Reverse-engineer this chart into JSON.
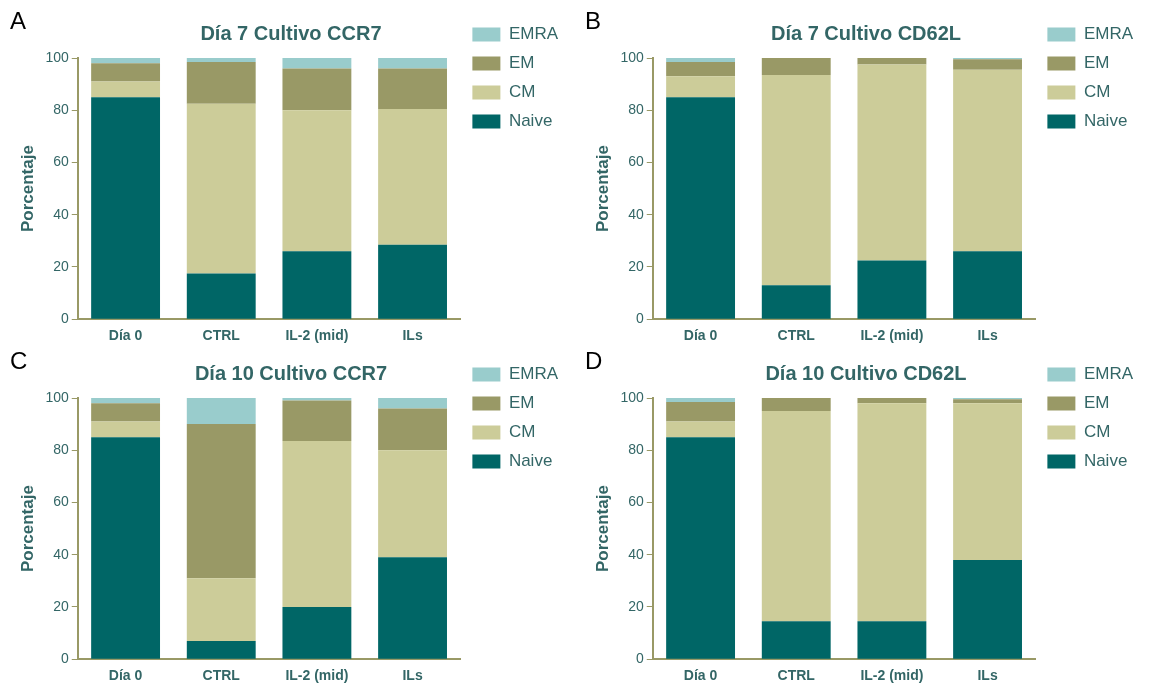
{
  "chart_data": [
    {
      "type": "bar",
      "title": "Día 7 Cultivo CCR7",
      "annotations": [
        "A"
      ],
      "ylabel": "Porcentaje",
      "categories": [
        "Día 0",
        "CTRL",
        "IL-2 (mid)",
        "ILs"
      ],
      "stacked": true,
      "ylim": [
        0,
        100
      ],
      "yticks": [
        0,
        20,
        40,
        60,
        80,
        100
      ],
      "grid": false,
      "legend": "right",
      "series": [
        {
          "name": "Naive",
          "color": "#006666",
          "values": [
            85,
            17.5,
            26,
            28.5
          ]
        },
        {
          "name": "CM",
          "color": "#cccc99",
          "values": [
            6,
            65,
            54,
            52
          ]
        },
        {
          "name": "EM",
          "color": "#999966",
          "values": [
            7,
            16,
            16,
            15.5
          ]
        },
        {
          "name": "EMRA",
          "color": "#99cccc",
          "values": [
            2,
            1.5,
            4,
            4
          ]
        }
      ]
    },
    {
      "type": "bar",
      "title": "Día 7 Cultivo CD62L",
      "annotations": [
        "B"
      ],
      "ylabel": "Porcentaje",
      "categories": [
        "Día 0",
        "CTRL",
        "IL-2 (mid)",
        "ILs"
      ],
      "stacked": true,
      "ylim": [
        0,
        100
      ],
      "yticks": [
        0,
        20,
        40,
        60,
        80,
        100
      ],
      "grid": false,
      "legend": "right",
      "series": [
        {
          "name": "Naive",
          "color": "#006666",
          "values": [
            85,
            13,
            22.5,
            26
          ]
        },
        {
          "name": "CM",
          "color": "#cccc99",
          "values": [
            8,
            80.5,
            75,
            69.5
          ]
        },
        {
          "name": "EM",
          "color": "#999966",
          "values": [
            5.5,
            6.5,
            2.5,
            4
          ]
        },
        {
          "name": "EMRA",
          "color": "#99cccc",
          "values": [
            1.5,
            0,
            0,
            0.5
          ]
        }
      ]
    },
    {
      "type": "bar",
      "title": "Día 10 Cultivo CCR7",
      "annotations": [
        "C"
      ],
      "ylabel": "Porcentaje",
      "categories": [
        "Día 0",
        "CTRL",
        "IL-2 (mid)",
        "ILs"
      ],
      "stacked": true,
      "ylim": [
        0,
        100
      ],
      "yticks": [
        0,
        20,
        40,
        60,
        80,
        100
      ],
      "grid": false,
      "legend": "right",
      "series": [
        {
          "name": "Naive",
          "color": "#006666",
          "values": [
            85,
            7,
            20,
            39
          ]
        },
        {
          "name": "CM",
          "color": "#cccc99",
          "values": [
            6,
            24,
            63.5,
            41
          ]
        },
        {
          "name": "EM",
          "color": "#999966",
          "values": [
            7,
            59,
            15.5,
            16
          ]
        },
        {
          "name": "EMRA",
          "color": "#99cccc",
          "values": [
            2,
            10,
            1,
            4
          ]
        }
      ]
    },
    {
      "type": "bar",
      "title": "Día 10 Cultivo CD62L",
      "annotations": [
        "D"
      ],
      "ylabel": "Porcentaje",
      "categories": [
        "Día 0",
        "CTRL",
        "IL-2 (mid)",
        "ILs"
      ],
      "stacked": true,
      "ylim": [
        0,
        100
      ],
      "yticks": [
        0,
        20,
        40,
        60,
        80,
        100
      ],
      "grid": false,
      "legend": "right",
      "series": [
        {
          "name": "Naive",
          "color": "#006666",
          "values": [
            85,
            14.5,
            14.5,
            38
          ]
        },
        {
          "name": "CM",
          "color": "#cccc99",
          "values": [
            6,
            80.5,
            83.5,
            60
          ]
        },
        {
          "name": "EM",
          "color": "#999966",
          "values": [
            7.5,
            5,
            2,
            1.5
          ]
        },
        {
          "name": "EMRA",
          "color": "#99cccc",
          "values": [
            1.5,
            0,
            0,
            0.5
          ]
        }
      ]
    }
  ]
}
